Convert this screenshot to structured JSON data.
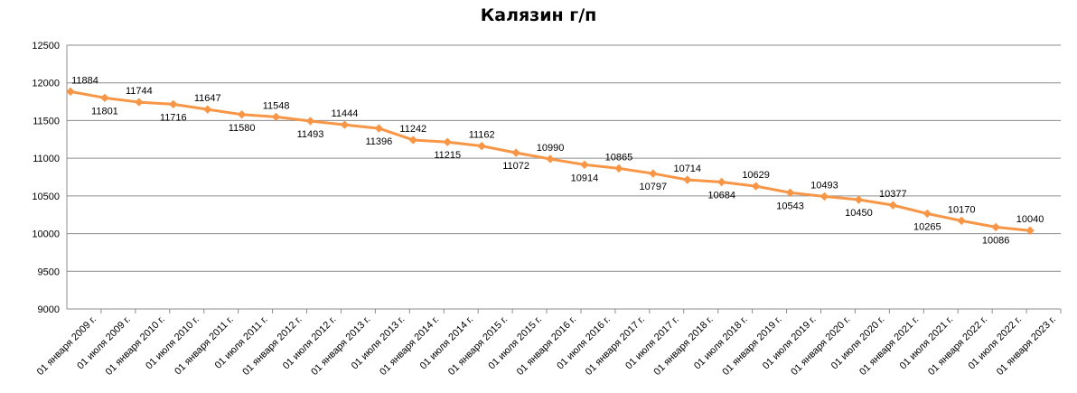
{
  "chart_data": {
    "type": "line",
    "title": "Калязин г/п",
    "xlabel": "",
    "ylabel": "",
    "ylim": [
      9000,
      12500
    ],
    "y_ticks": [
      9000,
      9500,
      10000,
      10500,
      11000,
      11500,
      12000,
      12500
    ],
    "grid": "horizontal",
    "legend": "none",
    "series_color": "#f79646",
    "categories": [
      "01 января 2009 г.",
      "01 июля 2009 г.",
      "01 января 2010 г.",
      "01 июля 2010 г.",
      "01 января 2011 г.",
      "01 июля 2011 г.",
      "01 января 2012 г.",
      "01 июля 2012 г.",
      "01 января 2013 г.",
      "01 июля 2013 г.",
      "01 января 2014 г.",
      "01 июля 2014 г.",
      "01 января 2015 г.",
      "01 июля 2015 г.",
      "01 января 2016 г.",
      "01 июля 2016 г.",
      "01 января 2017 г.",
      "01 июля 2017 г.",
      "01 января 2018 г.",
      "01 июля 2018 г.",
      "01 января 2019 г.",
      "01 июля 2019 г.",
      "01 января 2020 г.",
      "01 июля 2020 г.",
      "01 января 2021 г.",
      "01 июля 2021 г.",
      "01 января 2022 г.",
      "01 июля 2022 г.",
      "01 января 2023 г."
    ],
    "series": [
      {
        "values": [
          11884,
          11801,
          11744,
          11716,
          11647,
          11580,
          11548,
          11493,
          11444,
          11396,
          11242,
          11215,
          11162,
          11072,
          10990,
          10914,
          10865,
          10797,
          10714,
          10684,
          10629,
          10543,
          10493,
          10450,
          10377,
          10265,
          10170,
          10086,
          10040
        ]
      }
    ]
  }
}
